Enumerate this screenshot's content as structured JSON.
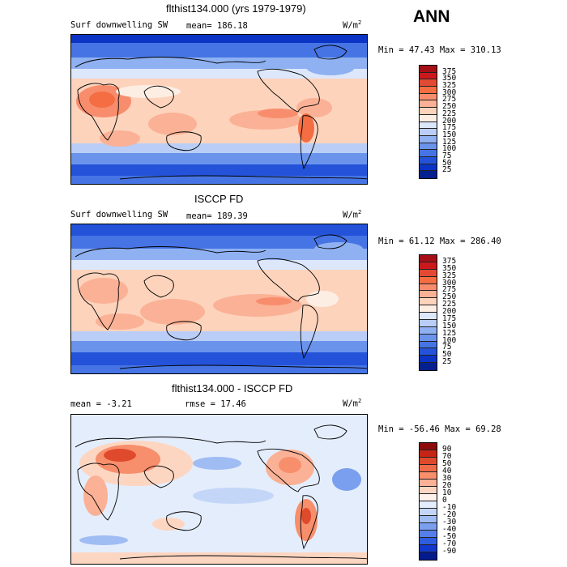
{
  "season": "ANN",
  "unit_label": "W/m",
  "unit_power": "2",
  "panels": [
    {
      "title": "flthist134.000 (yrs 1979-1979)",
      "variable": "Surf downwelling SW",
      "stat_left": "",
      "mean_text": "mean= 186.18",
      "minmax_text": "Min =  47.43 Max = 310.13",
      "levels": [
        "375",
        "350",
        "325",
        "300",
        "275",
        "250",
        "225",
        "200",
        "175",
        "150",
        "125",
        "100",
        "75",
        "50",
        "25"
      ],
      "colors": [
        "#a50f15",
        "#cb181d",
        "#e34a33",
        "#f46d43",
        "#f88d6d",
        "#fbb195",
        "#fdd3bc",
        "#fdeee4",
        "#dce7fb",
        "#b9cdf6",
        "#8fb1f2",
        "#6a93ec",
        "#4674e4",
        "#2453d9",
        "#0b33c4",
        "#04208f"
      ]
    },
    {
      "title": "ISCCP FD",
      "variable": "Surf downwelling SW",
      "stat_left": "",
      "mean_text": "mean= 189.39",
      "minmax_text": "Min =  61.12 Max = 286.40",
      "levels": [
        "375",
        "350",
        "325",
        "300",
        "275",
        "250",
        "225",
        "200",
        "175",
        "150",
        "125",
        "100",
        "75",
        "50",
        "25"
      ],
      "colors": [
        "#a50f15",
        "#cb181d",
        "#e34a33",
        "#f46d43",
        "#f88d6d",
        "#fbb195",
        "#fdd3bc",
        "#fdeee4",
        "#dce7fb",
        "#b9cdf6",
        "#8fb1f2",
        "#6a93ec",
        "#4674e4",
        "#2453d9",
        "#0b33c4",
        "#04208f"
      ]
    },
    {
      "title": "flthist134.000 - ISCCP FD",
      "variable": "",
      "stat_left": "mean =  -3.21",
      "mean_text": "rmse =  17.46",
      "minmax_text": "Min = -56.46 Max =  69.28",
      "levels": [
        "90",
        "70",
        "50",
        "40",
        "30",
        "20",
        "10",
        "0",
        "-10",
        "-20",
        "-30",
        "-40",
        "-50",
        "-70",
        "-90"
      ],
      "colors": [
        "#8e0b0b",
        "#c62515",
        "#e04a2c",
        "#f06b48",
        "#f78e6c",
        "#fbb195",
        "#fdd6c2",
        "#fef1ea",
        "#e4edfc",
        "#c4d6f7",
        "#9fbcf3",
        "#7a9fee",
        "#557fe8",
        "#2f5ddf",
        "#1238cc",
        "#031b8c"
      ]
    }
  ],
  "chart_data": [
    {
      "type": "heatmap",
      "title": "flthist134.000 (yrs 1979-1979)",
      "variable": "Surf downwelling SW",
      "units": "W/m2",
      "mean": 186.18,
      "min": 47.43,
      "max": 310.13,
      "contour_levels": [
        25,
        50,
        75,
        100,
        125,
        150,
        175,
        200,
        225,
        250,
        275,
        300,
        325,
        350,
        375
      ]
    },
    {
      "type": "heatmap",
      "title": "ISCCP FD",
      "variable": "Surf downwelling SW",
      "units": "W/m2",
      "mean": 189.39,
      "min": 61.12,
      "max": 286.4,
      "contour_levels": [
        25,
        50,
        75,
        100,
        125,
        150,
        175,
        200,
        225,
        250,
        275,
        300,
        325,
        350,
        375
      ]
    },
    {
      "type": "heatmap",
      "title": "flthist134.000 - ISCCP FD",
      "units": "W/m2",
      "mean": -3.21,
      "rmse": 17.46,
      "min": -56.46,
      "max": 69.28,
      "contour_levels": [
        -90,
        -70,
        -50,
        -40,
        -30,
        -20,
        -10,
        0,
        10,
        20,
        30,
        40,
        50,
        70,
        90
      ]
    }
  ]
}
